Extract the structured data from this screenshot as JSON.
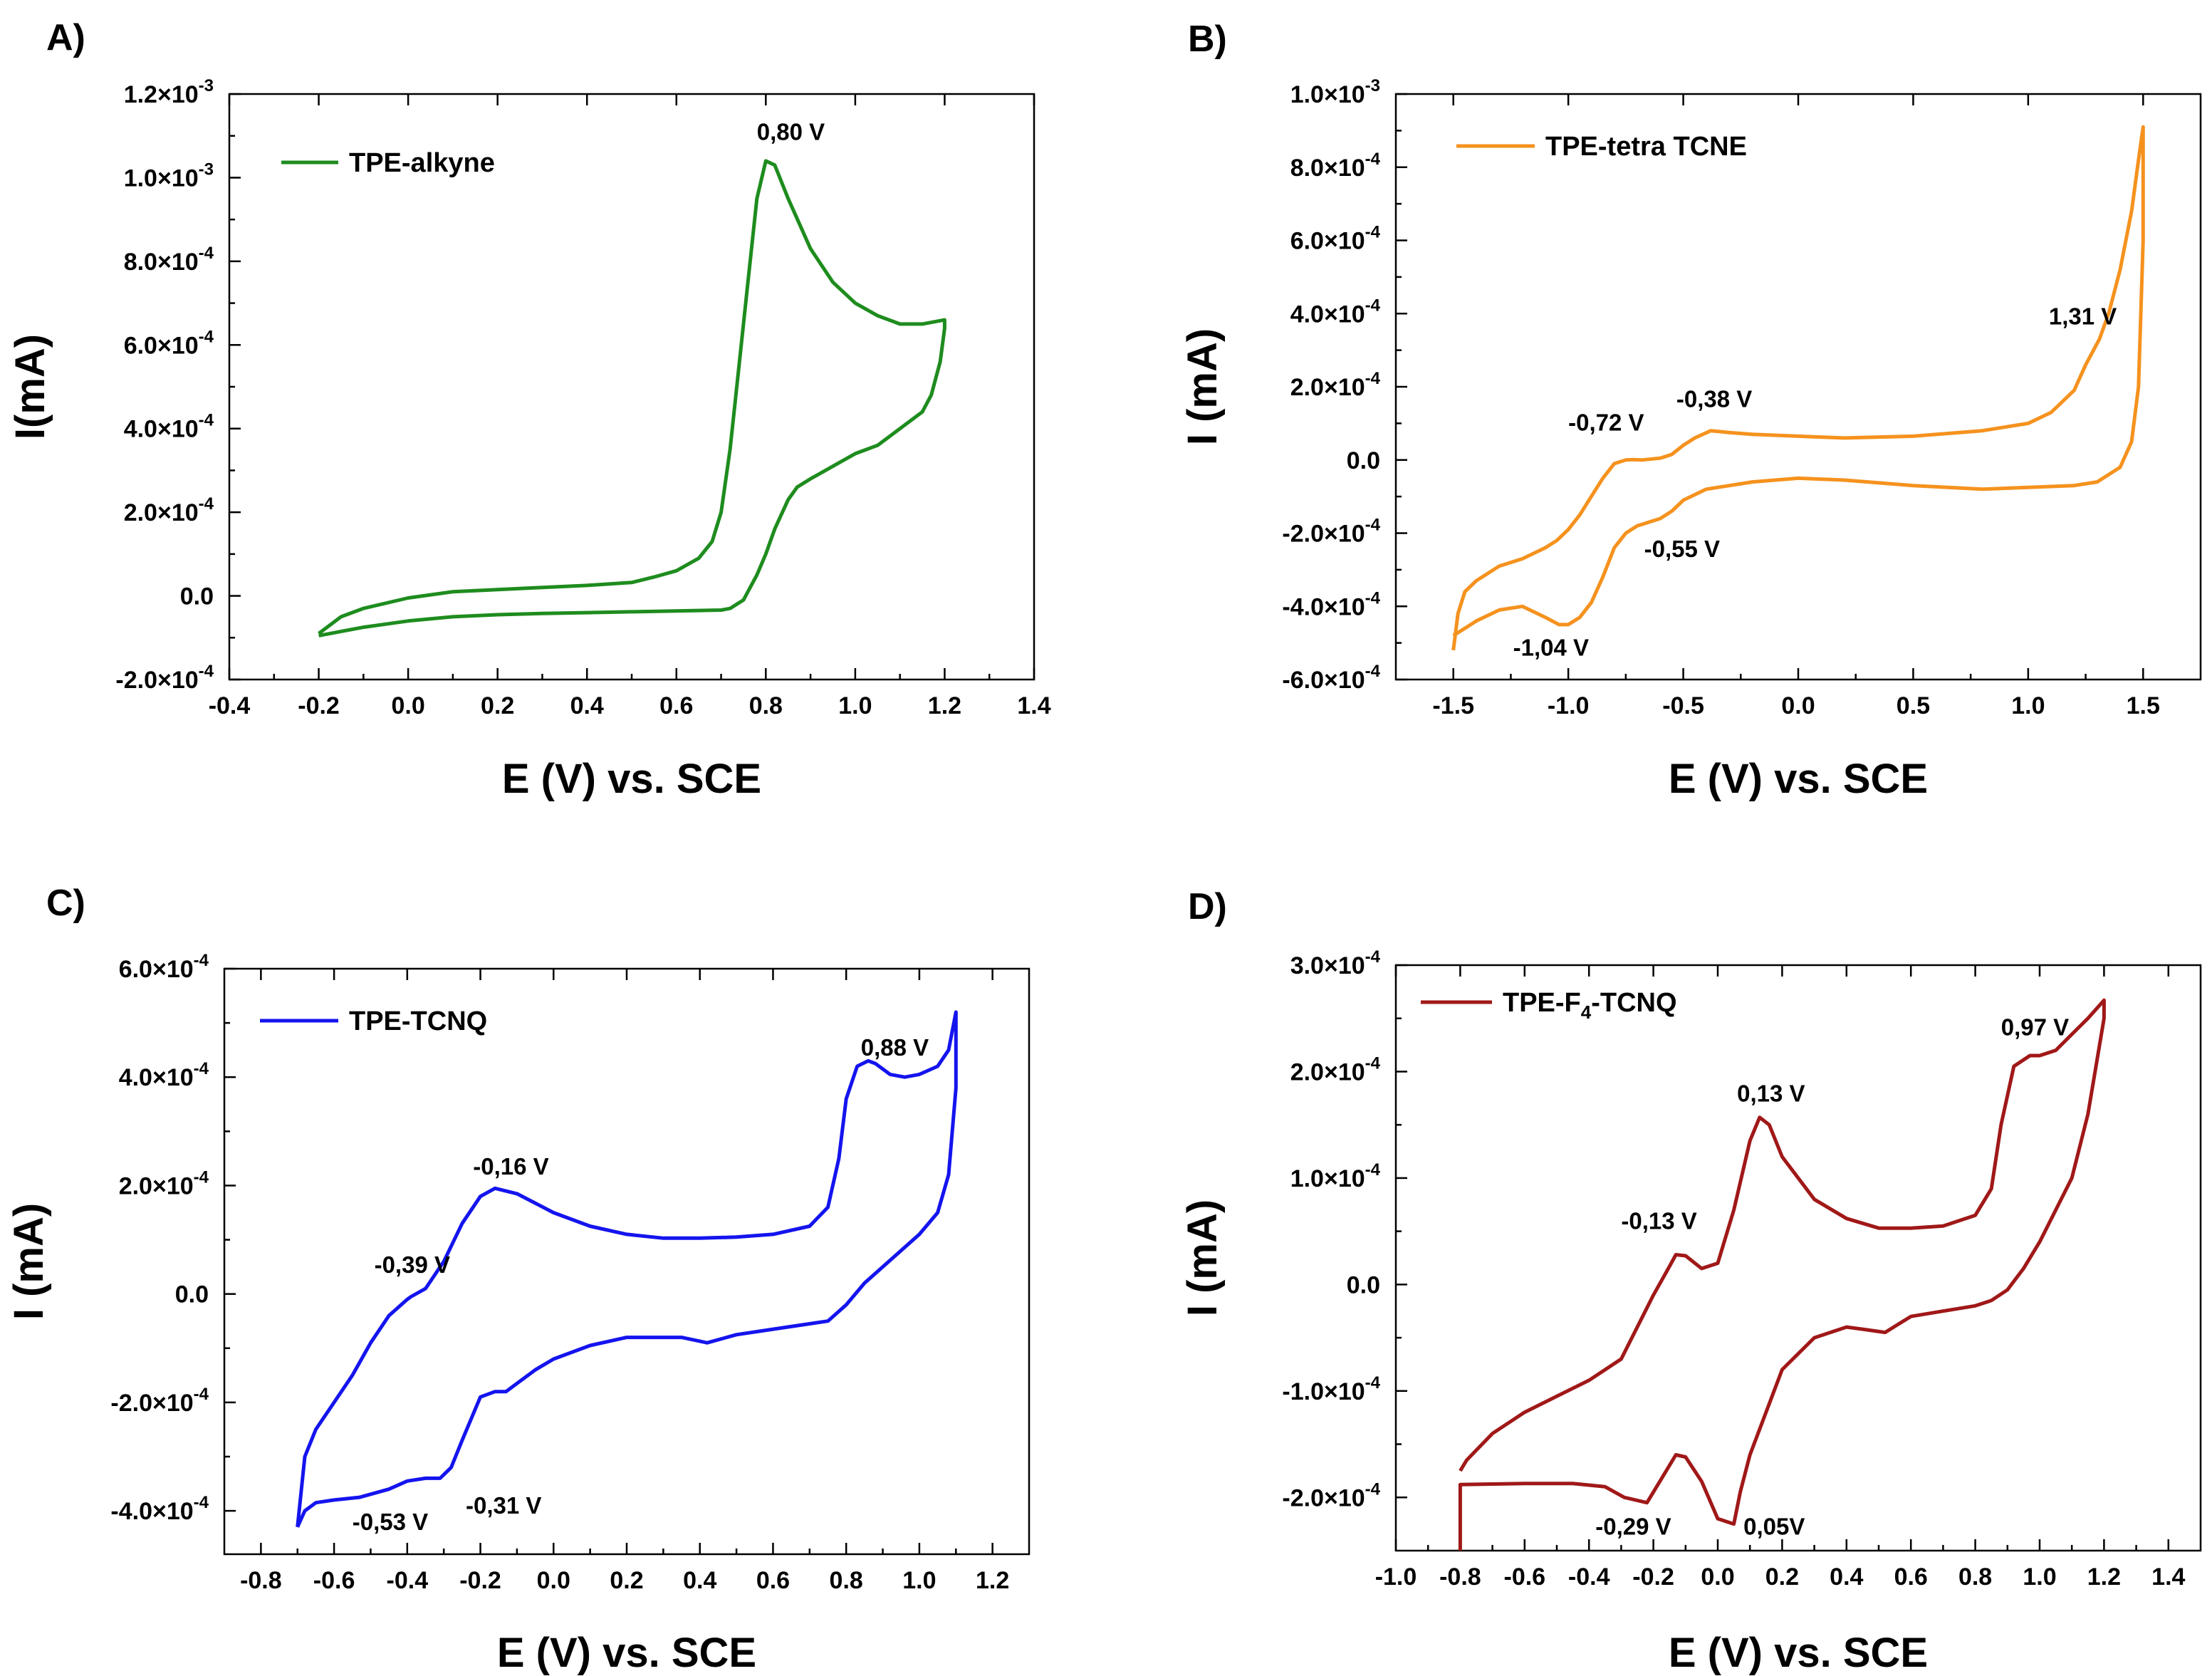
{
  "chart_data": [
    {
      "panel": "A)",
      "type": "line",
      "xlabel": "E (V) vs. SCE",
      "ylabel": "I(mA)",
      "xlim": [
        -0.4,
        1.4
      ],
      "ylim": [
        -0.0002,
        0.0012
      ],
      "x_ticks": [
        -0.4,
        -0.2,
        0.0,
        0.2,
        0.4,
        0.6,
        0.8,
        1.0,
        1.2,
        1.4
      ],
      "x_tick_labels": [
        "-0.4",
        "-0.2",
        "0.0",
        "0.2",
        "0.4",
        "0.6",
        "0.8",
        "1.0",
        "1.2",
        "1.4"
      ],
      "y_ticks": [
        -0.0002,
        0,
        0.0002,
        0.0004,
        0.0006,
        0.0008,
        0.001,
        0.0012
      ],
      "y_tick_labels": [
        {
          "m": "-2.0×10",
          "e": "-4"
        },
        {
          "m": "0.0",
          "e": ""
        },
        {
          "m": "2.0×10",
          "e": "-4"
        },
        {
          "m": "4.0×10",
          "e": "-4"
        },
        {
          "m": "6.0×10",
          "e": "-4"
        },
        {
          "m": "8.0×10",
          "e": "-4"
        },
        {
          "m": "1.0×10",
          "e": "-3"
        },
        {
          "m": "1.2×10",
          "e": "-3"
        }
      ],
      "series": [
        {
          "name": "TPE-alkyne",
          "color": "#1e8c1e",
          "x": [
            -0.2,
            -0.15,
            -0.1,
            0.0,
            0.1,
            0.2,
            0.3,
            0.4,
            0.5,
            0.55,
            0.6,
            0.65,
            0.68,
            0.7,
            0.72,
            0.74,
            0.76,
            0.78,
            0.8,
            0.82,
            0.85,
            0.9,
            0.95,
            1.0,
            1.05,
            1.1,
            1.15,
            1.2,
            1.2,
            1.19,
            1.17,
            1.15,
            1.1,
            1.05,
            1.0,
            0.95,
            0.9,
            0.87,
            0.85,
            0.82,
            0.8,
            0.78,
            0.75,
            0.72,
            0.7,
            0.65,
            0.6,
            0.5,
            0.4,
            0.3,
            0.2,
            0.1,
            0.0,
            -0.1,
            -0.2
          ],
          "y": [
            -9e-05,
            -5e-05,
            -3e-05,
            -5e-06,
            1e-05,
            1.5e-05,
            2e-05,
            2.5e-05,
            3.2e-05,
            4.5e-05,
            6e-05,
            9e-05,
            0.00013,
            0.0002,
            0.00035,
            0.00055,
            0.00075,
            0.00095,
            0.00104,
            0.00103,
            0.00095,
            0.00083,
            0.00075,
            0.0007,
            0.00067,
            0.00065,
            0.00065,
            0.00066,
            0.00064,
            0.00056,
            0.00048,
            0.00044,
            0.0004,
            0.00036,
            0.00034,
            0.00031,
            0.00028,
            0.00026,
            0.00023,
            0.00016,
            0.0001,
            5e-05,
            -1e-05,
            -3e-05,
            -3.4e-05,
            -3.5e-05,
            -3.6e-05,
            -3.8e-05,
            -4e-05,
            -4.2e-05,
            -4.5e-05,
            -5e-05,
            -6e-05,
            -7.5e-05,
            -9.5e-05
          ]
        }
      ],
      "annotations": [
        {
          "text": "0,80 V",
          "x": 0.78,
          "y": 0.00109
        }
      ]
    },
    {
      "panel": "B)",
      "type": "line",
      "xlabel": "E (V) vs. SCE",
      "ylabel": "I (mA)",
      "xlim": [
        -1.75,
        1.75
      ],
      "ylim": [
        -0.0006,
        0.001
      ],
      "x_ticks": [
        -1.5,
        -1.0,
        -0.5,
        0.0,
        0.5,
        1.0,
        1.5
      ],
      "x_tick_labels": [
        "-1.5",
        "-1.0",
        "-0.5",
        "0.0",
        "0.5",
        "1.0",
        "1.5"
      ],
      "y_ticks": [
        -0.0006,
        -0.0004,
        -0.0002,
        0,
        0.0002,
        0.0004,
        0.0006,
        0.0008,
        0.001
      ],
      "y_tick_labels": [
        {
          "m": "-6.0×10",
          "e": "-4"
        },
        {
          "m": "-4.0×10",
          "e": "-4"
        },
        {
          "m": "-2.0×10",
          "e": "-4"
        },
        {
          "m": "0.0",
          "e": ""
        },
        {
          "m": "2.0×10",
          "e": "-4"
        },
        {
          "m": "4.0×10",
          "e": "-4"
        },
        {
          "m": "6.0×10",
          "e": "-4"
        },
        {
          "m": "8.0×10",
          "e": "-4"
        },
        {
          "m": "1.0×10",
          "e": "-3"
        }
      ],
      "series": [
        {
          "name": "TPE-tetra TCNE",
          "color": "#f5921e",
          "x": [
            -1.5,
            -1.48,
            -1.45,
            -1.4,
            -1.3,
            -1.2,
            -1.1,
            -1.05,
            -1.0,
            -0.95,
            -0.9,
            -0.85,
            -0.8,
            -0.75,
            -0.72,
            -0.68,
            -0.6,
            -0.55,
            -0.5,
            -0.45,
            -0.38,
            -0.3,
            -0.2,
            0.0,
            0.2,
            0.5,
            0.8,
            1.0,
            1.1,
            1.2,
            1.25,
            1.31,
            1.35,
            1.4,
            1.45,
            1.48,
            1.5,
            1.5,
            1.48,
            1.45,
            1.4,
            1.35,
            1.3,
            1.2,
            1.0,
            0.8,
            0.5,
            0.2,
            0.0,
            -0.2,
            -0.4,
            -0.5,
            -0.55,
            -0.6,
            -0.7,
            -0.75,
            -0.8,
            -0.85,
            -0.9,
            -0.95,
            -1.0,
            -1.04,
            -1.1,
            -1.2,
            -1.3,
            -1.4,
            -1.45,
            -1.5
          ],
          "y": [
            -0.00052,
            -0.00042,
            -0.00036,
            -0.00033,
            -0.00029,
            -0.00027,
            -0.00024,
            -0.00022,
            -0.00019,
            -0.00015,
            -0.0001,
            -5e-05,
            -1e-05,
            0.0,
            1e-06,
            0.0,
            5e-06,
            1.5e-05,
            4e-05,
            6e-05,
            8e-05,
            7.5e-05,
            7e-05,
            6.5e-05,
            6e-05,
            6.5e-05,
            8e-05,
            0.0001,
            0.00013,
            0.00019,
            0.00026,
            0.00033,
            0.0004,
            0.00052,
            0.00068,
            0.00082,
            0.00091,
            0.0006,
            0.0002,
            5e-05,
            -2e-05,
            -4e-05,
            -6e-05,
            -7e-05,
            -7.5e-05,
            -8e-05,
            -7e-05,
            -5.5e-05,
            -5e-05,
            -6e-05,
            -8e-05,
            -0.00011,
            -0.00014,
            -0.00016,
            -0.00018,
            -0.0002,
            -0.00024,
            -0.00032,
            -0.00039,
            -0.00043,
            -0.00045,
            -0.00045,
            -0.00043,
            -0.0004,
            -0.00041,
            -0.00044,
            -0.00046,
            -0.00048
          ]
        }
      ],
      "annotations": [
        {
          "text": "1,31 V",
          "x": 1.09,
          "y": 0.00037
        },
        {
          "text": "-0,38 V",
          "x": -0.53,
          "y": 0.000145
        },
        {
          "text": "-0,72 V",
          "x": -1.0,
          "y": 8e-05
        },
        {
          "text": "-0,55 V",
          "x": -0.67,
          "y": -0.000265
        },
        {
          "text": "-1,04 V",
          "x": -1.24,
          "y": -0.000535
        }
      ]
    },
    {
      "panel": "C)",
      "type": "line",
      "xlabel": "E (V) vs. SCE",
      "ylabel": "I (mA)",
      "xlim": [
        -0.9,
        1.3
      ],
      "ylim": [
        -0.00048,
        0.0006
      ],
      "x_ticks": [
        -0.8,
        -0.6,
        -0.4,
        -0.2,
        0.0,
        0.2,
        0.4,
        0.6,
        0.8,
        1.0,
        1.2
      ],
      "x_tick_labels": [
        "-0.8",
        "-0.6",
        "-0.4",
        "-0.2",
        "0.0",
        "0.2",
        "0.4",
        "0.6",
        "0.8",
        "1.0",
        "1.2"
      ],
      "y_ticks": [
        -0.0004,
        -0.0002,
        0,
        0.0002,
        0.0004,
        0.0006
      ],
      "y_tick_labels": [
        {
          "m": "-4.0×10",
          "e": "-4"
        },
        {
          "m": "-2.0×10",
          "e": "-4"
        },
        {
          "m": "0.0",
          "e": ""
        },
        {
          "m": "2.0×10",
          "e": "-4"
        },
        {
          "m": "4.0×10",
          "e": "-4"
        },
        {
          "m": "6.0×10",
          "e": "-4"
        }
      ],
      "series": [
        {
          "name": "TPE-TCNQ",
          "color": "#1414ee",
          "x": [
            -0.7,
            -0.68,
            -0.65,
            -0.6,
            -0.55,
            -0.5,
            -0.45,
            -0.4,
            -0.39,
            -0.35,
            -0.3,
            -0.25,
            -0.2,
            -0.16,
            -0.1,
            0.0,
            0.1,
            0.2,
            0.3,
            0.4,
            0.5,
            0.6,
            0.7,
            0.75,
            0.78,
            0.8,
            0.83,
            0.86,
            0.88,
            0.92,
            0.96,
            1.0,
            1.05,
            1.08,
            1.1,
            1.1,
            1.08,
            1.05,
            1.0,
            0.95,
            0.9,
            0.85,
            0.8,
            0.75,
            0.7,
            0.6,
            0.5,
            0.42,
            0.35,
            0.2,
            0.1,
            0.0,
            -0.05,
            -0.1,
            -0.13,
            -0.16,
            -0.2,
            -0.25,
            -0.28,
            -0.31,
            -0.35,
            -0.4,
            -0.45,
            -0.53,
            -0.6,
            -0.65,
            -0.68,
            -0.7
          ],
          "y": [
            -0.00043,
            -0.0003,
            -0.00025,
            -0.0002,
            -0.00015,
            -9e-05,
            -4e-05,
            -1e-05,
            -5e-06,
            1e-05,
            6e-05,
            0.00013,
            0.00018,
            0.000195,
            0.000185,
            0.00015,
            0.000125,
            0.00011,
            0.000103,
            0.000103,
            0.000105,
            0.00011,
            0.000125,
            0.00016,
            0.00025,
            0.00036,
            0.00042,
            0.00043,
            0.000425,
            0.000405,
            0.0004,
            0.000405,
            0.00042,
            0.00045,
            0.00052,
            0.00038,
            0.00022,
            0.00015,
            0.00011,
            8e-05,
            5e-05,
            2e-05,
            -2e-05,
            -5e-05,
            -5.5e-05,
            -6.5e-05,
            -7.5e-05,
            -9e-05,
            -8e-05,
            -8e-05,
            -9.5e-05,
            -0.00012,
            -0.00014,
            -0.000165,
            -0.00018,
            -0.00018,
            -0.00019,
            -0.00027,
            -0.00032,
            -0.00034,
            -0.00034,
            -0.000345,
            -0.00036,
            -0.000375,
            -0.00038,
            -0.000385,
            -0.0004,
            -0.00043
          ]
        }
      ],
      "annotations": [
        {
          "text": "0,88 V",
          "x": 0.84,
          "y": 0.00044
        },
        {
          "text": "-0,16 V",
          "x": -0.22,
          "y": 0.00022
        },
        {
          "text": "-0,39 V",
          "x": -0.49,
          "y": 3.9e-05
        },
        {
          "text": "-0,31 V",
          "x": -0.24,
          "y": -0.000405
        },
        {
          "text": "-0,53 V",
          "x": -0.55,
          "y": -0.000435
        }
      ]
    },
    {
      "panel": "D)",
      "type": "line",
      "xlabel": "E (V) vs. SCE",
      "ylabel": "I (mA)",
      "xlim": [
        -1.0,
        1.5
      ],
      "ylim": [
        -0.00025,
        0.0003
      ],
      "x_ticks": [
        -1.0,
        -0.8,
        -0.6,
        -0.4,
        -0.2,
        0.0,
        0.2,
        0.4,
        0.6,
        0.8,
        1.0,
        1.2,
        1.4
      ],
      "x_tick_labels": [
        "-1.0",
        "-0.8",
        "-0.6",
        "-0.4",
        "-0.2",
        "0.0",
        "0.2",
        "0.4",
        "0.6",
        "0.8",
        "1.0",
        "1.2",
        "1.4"
      ],
      "y_ticks": [
        -0.0002,
        -0.0001,
        0,
        0.0001,
        0.0002,
        0.0003
      ],
      "y_tick_labels": [
        {
          "m": "-2.0×10",
          "e": "-4"
        },
        {
          "m": "-1.0×10",
          "e": "-4"
        },
        {
          "m": "0.0",
          "e": ""
        },
        {
          "m": "1.0×10",
          "e": "-4"
        },
        {
          "m": "2.0×10",
          "e": "-4"
        },
        {
          "m": "3.0×10",
          "e": "-4"
        }
      ],
      "series": [
        {
          "name": "TPE-F4-TCNQ",
          "color": "#a01818",
          "x": [
            -0.8,
            -0.78,
            -0.7,
            -0.6,
            -0.5,
            -0.4,
            -0.3,
            -0.25,
            -0.2,
            -0.15,
            -0.13,
            -0.1,
            -0.05,
            0.0,
            0.05,
            0.1,
            0.13,
            0.16,
            0.2,
            0.3,
            0.4,
            0.5,
            0.6,
            0.7,
            0.8,
            0.85,
            0.88,
            0.92,
            0.97,
            1.0,
            1.05,
            1.1,
            1.15,
            1.2,
            1.2,
            1.15,
            1.1,
            1.05,
            1.0,
            0.95,
            0.9,
            0.85,
            0.8,
            0.7,
            0.6,
            0.52,
            0.45,
            0.4,
            0.3,
            0.2,
            0.15,
            0.1,
            0.07,
            0.05,
            0.0,
            -0.05,
            -0.1,
            -0.13,
            -0.18,
            -0.22,
            -0.29,
            -0.35,
            -0.45,
            -0.6,
            -0.8,
            -0.8
          ],
          "y": [
            -0.000175,
            -0.000165,
            -0.00014,
            -0.00012,
            -0.000105,
            -9e-05,
            -7e-05,
            -4e-05,
            -1e-05,
            1.7e-05,
            2.8e-05,
            2.7e-05,
            1.5e-05,
            2e-05,
            7e-05,
            0.000135,
            0.000157,
            0.00015,
            0.00012,
            8e-05,
            6.2e-05,
            5.3e-05,
            5.3e-05,
            5.5e-05,
            6.5e-05,
            9e-05,
            0.00015,
            0.000205,
            0.000215,
            0.000215,
            0.00022,
            0.000235,
            0.00025,
            0.000267,
            0.00025,
            0.00016,
            0.0001,
            7e-05,
            4e-05,
            1.5e-05,
            -5e-06,
            -1.5e-05,
            -2e-05,
            -2.5e-05,
            -3e-05,
            -4.5e-05,
            -4.2e-05,
            -4e-05,
            -5e-05,
            -8e-05,
            -0.00012,
            -0.00016,
            -0.000195,
            -0.000225,
            -0.00022,
            -0.000185,
            -0.000162,
            -0.00016,
            -0.000185,
            -0.000205,
            -0.0002,
            -0.00019,
            -0.000187,
            -0.000187,
            -0.000188,
            -0.00025
          ]
        }
      ],
      "annotations": [
        {
          "text": "0,97 V",
          "x": 0.88,
          "y": 0.000234
        },
        {
          "text": "0,13 V",
          "x": 0.06,
          "y": 0.000172
        },
        {
          "text": "-0,13 V",
          "x": -0.3,
          "y": 5.2e-05
        },
        {
          "text": "-0,29 V",
          "x": -0.38,
          "y": -0.000235
        },
        {
          "text": "0,05V",
          "x": 0.08,
          "y": -0.000235
        }
      ]
    }
  ]
}
